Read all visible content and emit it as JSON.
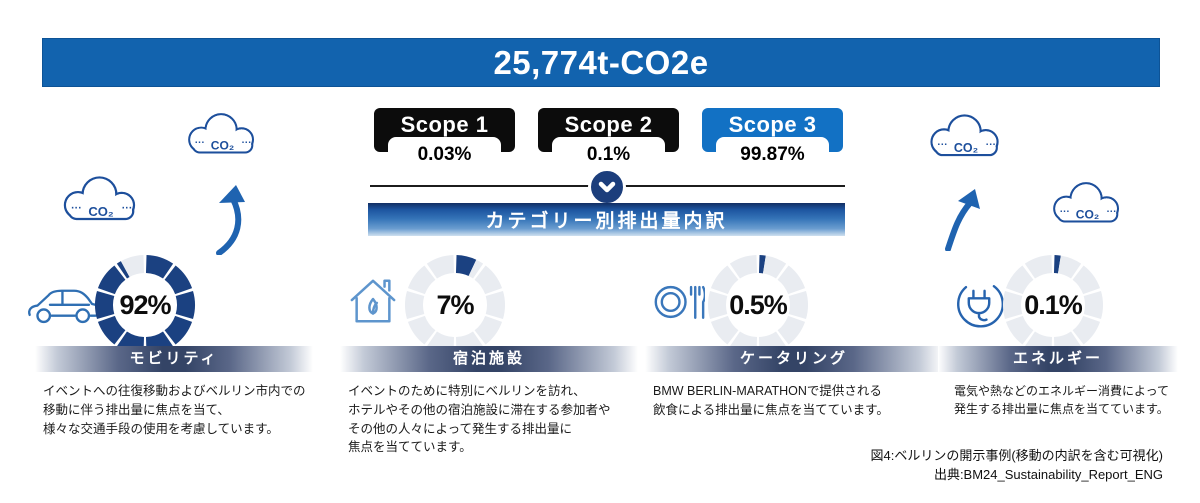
{
  "banner": {
    "total_label": "25,774t-CO2e",
    "bg_color": "#1263ae"
  },
  "scopes": {
    "items": [
      {
        "label": "Scope 1",
        "value": "0.03%",
        "bg_color": "#0c0c0c"
      },
      {
        "label": "Scope 2",
        "value": "0.1%",
        "bg_color": "#0c0c0c"
      },
      {
        "label": "Scope 3",
        "value": "99.87%",
        "bg_color": "#1271c4"
      }
    ]
  },
  "section": {
    "title": "カテゴリー別排出量内訳"
  },
  "chart_data": {
    "type": "pie",
    "subtype": "segmented-donut-set",
    "title": "カテゴリー別排出量内訳",
    "legend_position": "below-each-donut",
    "colors": {
      "filled": "#1b4181",
      "empty": "#e9ecf1"
    },
    "segments_per_ring": 10,
    "donuts": [
      {
        "label": "モビリティ",
        "value": 92,
        "display": "92%",
        "icon": "car-icon",
        "description": "イベントへの往復移動およびベルリン市内での\n移動に伴う排出量に焦点を当て、\n様々な交通手段の使用を考慮しています。"
      },
      {
        "label": "宿泊施設",
        "value": 7,
        "display": "7%",
        "icon": "eco-house-icon",
        "description": "イベントのために特別にベルリンを訪れ、\nホテルやその他の宿泊施設に滞在する参加者や\nその他の人々によって発生する排出量に\n焦点を当てています。"
      },
      {
        "label": "ケータリング",
        "value": 0.5,
        "display": "0.5%",
        "icon": "plate-cutlery-icon",
        "description": "BMW BERLIN-MARATHONで提供される\n飲食による排出量に焦点を当てています。"
      },
      {
        "label": "エネルギー",
        "value": 0.1,
        "display": "0.1%",
        "icon": "plug-icon",
        "description": "電気や熱などのエネルギー消費によって\n発生する排出量に焦点を当てています。"
      }
    ]
  },
  "decor": {
    "co2_label": "CO₂",
    "dots": "· · ·"
  },
  "footer": {
    "caption_line1": "図4:ベルリンの開示事例(移動の内訳を含む可視化)",
    "caption_line2": "出典:BM24_Sustainability_Report_ENG"
  }
}
